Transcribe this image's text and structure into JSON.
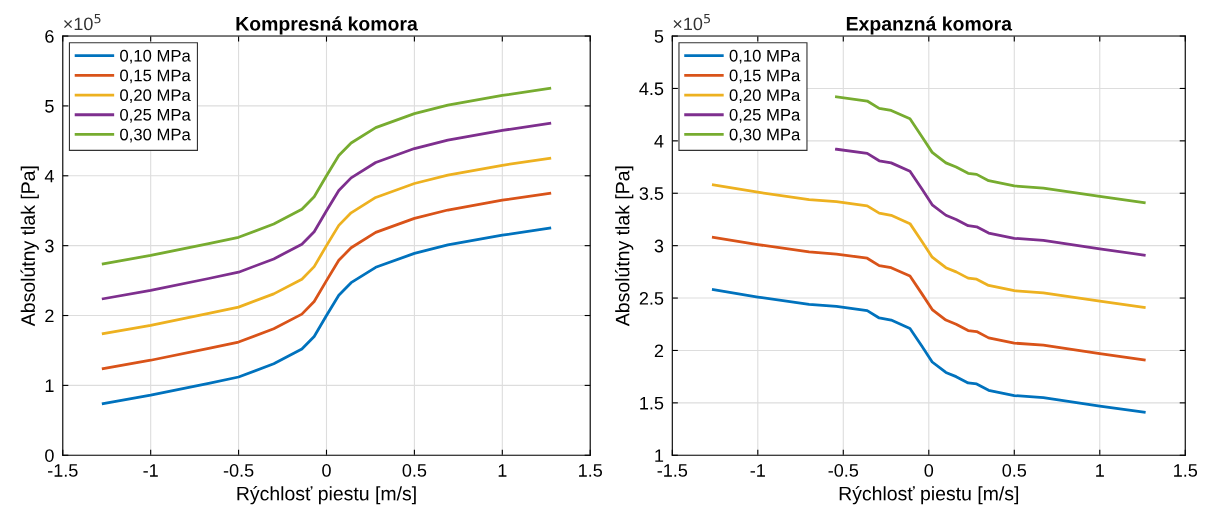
{
  "chart_data": [
    {
      "type": "line",
      "title": "Kompresná komora",
      "xlabel": "Rýchlosť piestu [m/s]",
      "ylabel": "Absolútny tlak [Pa]",
      "annotations": [
        "×10$^{5}$"
      ],
      "x": [
        -1.27,
        -1,
        -0.67,
        -0.5,
        -0.3,
        -0.14,
        -0.07,
        0,
        0.07,
        0.14,
        0.28,
        0.5,
        0.69,
        1,
        1.27
      ],
      "series": [
        {
          "name": "0,10 MPa",
          "color": "#0072bd",
          "values": [
            0.74,
            0.86,
            1.03,
            1.12,
            1.31,
            1.52,
            1.7,
            2.0,
            2.29,
            2.47,
            2.69,
            2.89,
            3.01,
            3.15,
            3.25
          ]
        },
        {
          "name": "0,15 MPa",
          "color": "#d95319",
          "values": [
            1.24,
            1.36,
            1.53,
            1.62,
            1.81,
            2.02,
            2.2,
            2.5,
            2.79,
            2.97,
            3.19,
            3.39,
            3.51,
            3.65,
            3.75
          ]
        },
        {
          "name": "0,20 MPa",
          "color": "#edb120",
          "values": [
            1.74,
            1.86,
            2.03,
            2.12,
            2.31,
            2.52,
            2.7,
            3.0,
            3.29,
            3.47,
            3.69,
            3.89,
            4.01,
            4.15,
            4.25
          ]
        },
        {
          "name": "0,25 MPa",
          "color": "#7e2f8e",
          "values": [
            2.24,
            2.36,
            2.53,
            2.62,
            2.81,
            3.02,
            3.2,
            3.5,
            3.79,
            3.97,
            4.19,
            4.39,
            4.51,
            4.65,
            4.75
          ]
        },
        {
          "name": "0,30 MPa",
          "color": "#77ac30",
          "values": [
            2.74,
            2.86,
            3.03,
            3.12,
            3.31,
            3.52,
            3.7,
            4.0,
            4.29,
            4.47,
            4.69,
            4.89,
            5.01,
            5.15,
            5.25
          ]
        }
      ],
      "xlim": [
        -1.5,
        1.5
      ],
      "xticks": [
        -1.5,
        -1,
        -0.5,
        0,
        0.5,
        1,
        1.5
      ],
      "ylim": [
        0,
        6
      ],
      "yticks": [
        0,
        1,
        2,
        3,
        4,
        5,
        6
      ],
      "grid": true,
      "legend": "top left",
      "marker": "none",
      "line_style": "solid"
    },
    {
      "type": "line",
      "title": "Expanzná komora",
      "xlabel": "Rýchlosť piestu [m/s]",
      "ylabel": "Absolútny tlak [Pa]",
      "annotations": [
        "×10$^{5}$"
      ],
      "x": [
        -1.26,
        -1,
        -0.7,
        -0.54,
        -0.36,
        -0.29,
        -0.22,
        -0.11,
        -0.04,
        0.02,
        0.1,
        0.16,
        0.23,
        0.28,
        0.35,
        0.5,
        0.67,
        1,
        1.26
      ],
      "series": [
        {
          "name": "0,10 MPa",
          "color": "#0072bd",
          "values": [
            2.58,
            2.51,
            2.44,
            2.42,
            2.38,
            2.31,
            2.29,
            2.21,
            2.04,
            1.89,
            1.79,
            1.75,
            1.69,
            1.68,
            1.62,
            1.57,
            1.55,
            1.47,
            1.41
          ]
        },
        {
          "name": "0,15 MPa",
          "color": "#d95319",
          "values": [
            3.08,
            3.01,
            2.94,
            2.92,
            2.88,
            2.81,
            2.79,
            2.71,
            2.54,
            2.39,
            2.29,
            2.25,
            2.19,
            2.18,
            2.12,
            2.07,
            2.05,
            1.97,
            1.91
          ]
        },
        {
          "name": "0,20 MPa",
          "color": "#edb120",
          "values": [
            3.58,
            3.51,
            3.44,
            3.42,
            3.38,
            3.31,
            3.29,
            3.21,
            3.04,
            2.89,
            2.79,
            2.75,
            2.69,
            2.68,
            2.62,
            2.57,
            2.55,
            2.47,
            2.41
          ]
        },
        {
          "name": "0,25 MPa",
          "color": "#7e2f8e",
          "values": [
            null,
            null,
            null,
            3.92,
            3.88,
            3.81,
            3.79,
            3.71,
            3.54,
            3.39,
            3.29,
            3.25,
            3.19,
            3.18,
            3.12,
            3.07,
            3.05,
            2.97,
            2.91
          ]
        },
        {
          "name": "0,30 MPa",
          "color": "#77ac30",
          "values": [
            null,
            null,
            null,
            4.42,
            4.38,
            4.31,
            4.29,
            4.21,
            4.04,
            3.89,
            3.79,
            3.75,
            3.69,
            3.68,
            3.62,
            3.57,
            3.55,
            3.47,
            3.41
          ]
        }
      ],
      "xlim": [
        -1.5,
        1.5
      ],
      "xticks": [
        -1.5,
        -1,
        -0.5,
        0,
        0.5,
        1,
        1.5
      ],
      "ylim": [
        1,
        5
      ],
      "yticks": [
        1,
        1.5,
        2,
        2.5,
        3,
        3.5,
        4,
        4.5,
        5
      ],
      "grid": true,
      "legend": "top left",
      "marker": "none",
      "line_style": "solid"
    }
  ]
}
